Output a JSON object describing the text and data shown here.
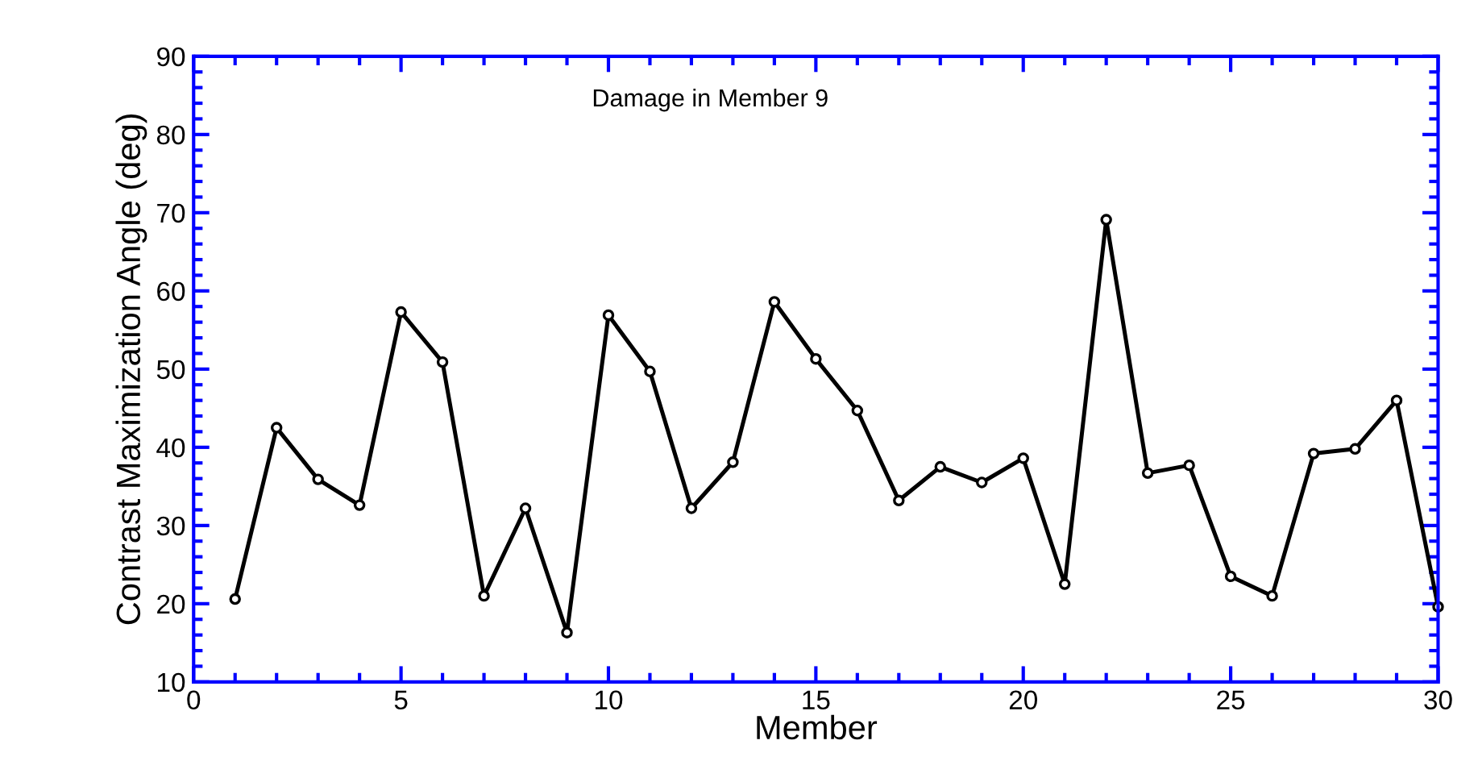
{
  "chart_data": {
    "type": "line",
    "xlabel": "Member",
    "ylabel": "Contrast Maximization Angle (deg)",
    "annotations": [
      "Damage in Member 9"
    ],
    "x": [
      1,
      2,
      3,
      4,
      5,
      6,
      7,
      8,
      9,
      10,
      11,
      12,
      13,
      14,
      15,
      16,
      17,
      18,
      19,
      20,
      21,
      22,
      23,
      24,
      25,
      26,
      27,
      28,
      29,
      30
    ],
    "series": [
      {
        "color": "#000000",
        "values": [
          20.6,
          42.5,
          35.9,
          32.6,
          57.3,
          50.9,
          21.0,
          32.2,
          16.3,
          56.9,
          49.7,
          32.2,
          38.1,
          58.6,
          51.3,
          44.7,
          33.2,
          37.5,
          35.5,
          38.6,
          22.5,
          69.1,
          36.7,
          37.7,
          23.5,
          21.0,
          39.2,
          39.8,
          46.0,
          19.6
        ]
      }
    ],
    "xlim": [
      0,
      30
    ],
    "ylim": [
      10,
      90
    ],
    "xticks": [
      0,
      5,
      10,
      15,
      20,
      25,
      30
    ],
    "yticks": [
      10,
      20,
      30,
      40,
      50,
      60,
      70,
      80,
      90
    ],
    "marker": "circle",
    "line_style": "solid",
    "grid": false,
    "legend": false
  }
}
